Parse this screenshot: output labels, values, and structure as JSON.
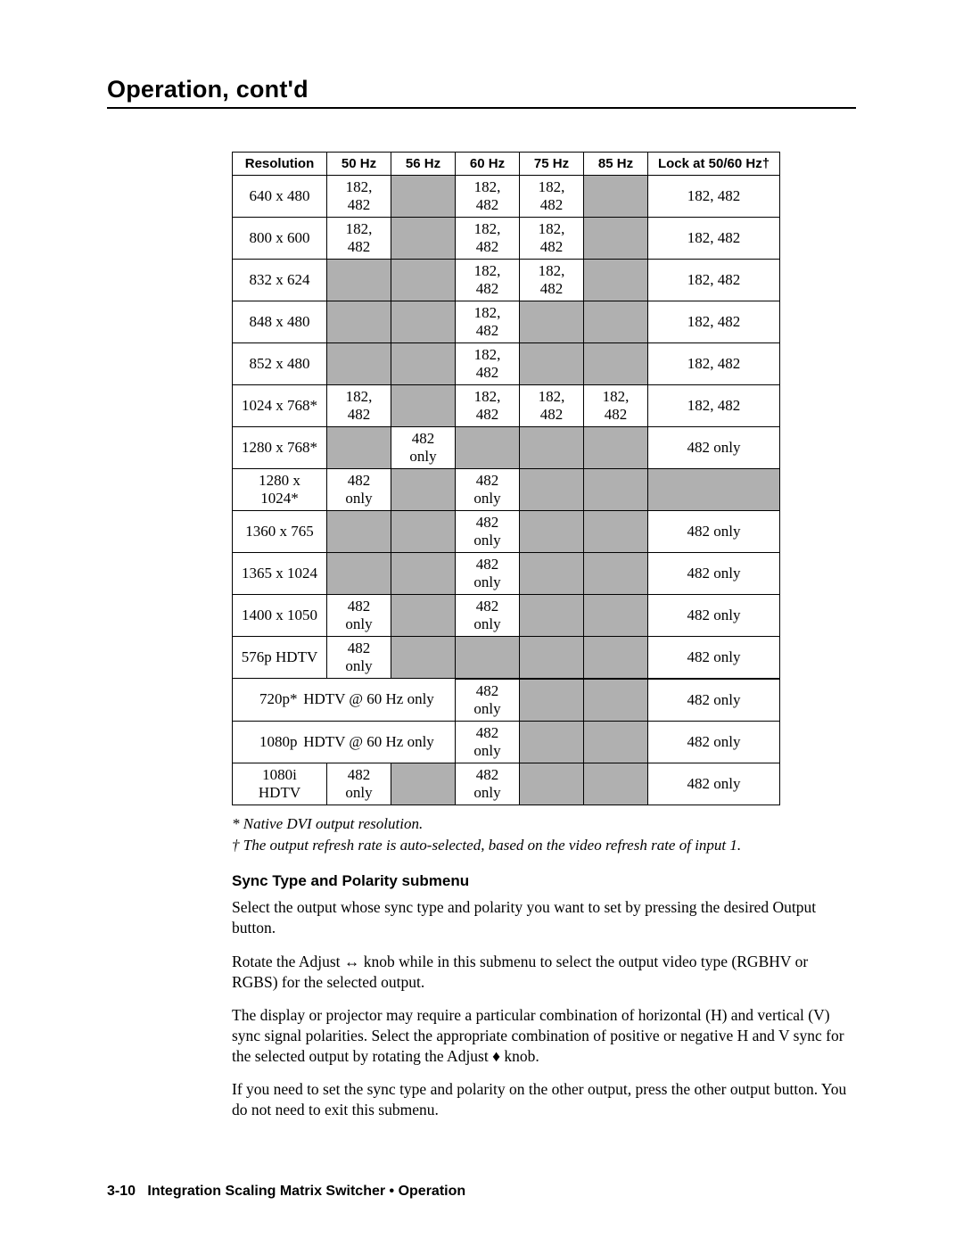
{
  "page_title": "Operation, cont'd",
  "table": {
    "headers": [
      "Resolution",
      "50 Hz",
      "56 Hz",
      "60 Hz",
      "75 Hz",
      "85 Hz",
      "Lock at 50/60 Hz†"
    ],
    "rows": [
      {
        "res": "640 x 480",
        "cells": [
          "182, 482",
          "",
          "182, 482",
          "182, 482",
          "",
          "182, 482"
        ],
        "shaded": [
          false,
          true,
          false,
          false,
          true,
          false
        ]
      },
      {
        "res": "800 x 600",
        "cells": [
          "182, 482",
          "",
          "182, 482",
          "182, 482",
          "",
          "182, 482"
        ],
        "shaded": [
          false,
          true,
          false,
          false,
          true,
          false
        ]
      },
      {
        "res": "832 x 624",
        "cells": [
          "",
          "",
          "182, 482",
          "182, 482",
          "",
          "182, 482"
        ],
        "shaded": [
          true,
          true,
          false,
          false,
          true,
          false
        ]
      },
      {
        "res": "848 x 480",
        "cells": [
          "",
          "",
          "182, 482",
          "",
          "",
          "182, 482"
        ],
        "shaded": [
          true,
          true,
          false,
          true,
          true,
          false
        ]
      },
      {
        "res": "852 x 480",
        "cells": [
          "",
          "",
          "182, 482",
          "",
          "",
          "182, 482"
        ],
        "shaded": [
          true,
          true,
          false,
          true,
          true,
          false
        ]
      },
      {
        "res": "1024 x 768*",
        "cells": [
          "182, 482",
          "",
          "182, 482",
          "182, 482",
          "182, 482",
          "182, 482"
        ],
        "shaded": [
          false,
          true,
          false,
          false,
          false,
          false
        ]
      },
      {
        "res": "1280 x 768*",
        "cells": [
          "",
          "482 only",
          "",
          "",
          "",
          "482 only"
        ],
        "shaded": [
          true,
          false,
          true,
          true,
          true,
          false
        ]
      },
      {
        "res": "1280 x 1024*",
        "cells": [
          "482 only",
          "",
          "482 only",
          "",
          "",
          ""
        ],
        "shaded": [
          false,
          true,
          false,
          true,
          true,
          true
        ]
      },
      {
        "res": "1360 x 765",
        "cells": [
          "",
          "",
          "482 only",
          "",
          "",
          "482 only"
        ],
        "shaded": [
          true,
          true,
          false,
          true,
          true,
          false
        ]
      },
      {
        "res": "1365 x 1024",
        "cells": [
          "",
          "",
          "482 only",
          "",
          "",
          "482 only"
        ],
        "shaded": [
          true,
          true,
          false,
          true,
          true,
          false
        ]
      },
      {
        "res": "1400 x 1050",
        "cells": [
          "482 only",
          "",
          "482 only",
          "",
          "",
          "482 only"
        ],
        "shaded": [
          false,
          true,
          false,
          true,
          true,
          false
        ]
      },
      {
        "res": "576p HDTV",
        "cells": [
          "482 only",
          "",
          "",
          "",
          "",
          "482 only"
        ],
        "shaded": [
          false,
          true,
          true,
          true,
          true,
          false
        ]
      }
    ],
    "span_rows": [
      {
        "label": "720p*",
        "sub": "HDTV @ 60 Hz only",
        "cells": [
          "482 only",
          "",
          "",
          "482 only"
        ],
        "shaded": [
          false,
          true,
          true,
          false
        ],
        "top_border": true
      },
      {
        "label": "1080p",
        "sub": "HDTV @ 60 Hz only",
        "cells": [
          "482 only",
          "",
          "",
          "482 only"
        ],
        "shaded": [
          false,
          true,
          true,
          false
        ],
        "top_border": false
      }
    ],
    "last_row": {
      "res": "1080i HDTV",
      "cells": [
        "482 only",
        "",
        "482 only",
        "",
        "",
        "482 only"
      ],
      "shaded": [
        false,
        true,
        false,
        true,
        true,
        false
      ]
    }
  },
  "footnotes": {
    "note1": "* Native DVI output resolution.",
    "note2_prefix": "†",
    "note2": " The output refresh rate is auto-selected, based on the video refresh rate of input 1."
  },
  "section": {
    "heading": "Sync Type and Polarity submenu",
    "p1": "Select the output whose sync type and polarity you want to set by pressing the desired Output button.",
    "p2a": "Rotate the Adjust ",
    "p2_knob_h": "↔",
    "p2b": " knob while in this submenu to select the output video type (RGBHV or RGBS) for the selected output.",
    "p3a": "The display or projector may require a particular combination of horizontal (H) and vertical (V) sync signal polarities.  Select the appropriate combination of positive or negative H and V sync for the selected output by rotating the Adjust ",
    "p3_knob_v": "♦",
    "p3b": " knob.",
    "p4": "If you need to set the sync type and polarity on the other output, press the other output button.  You do not need to exit this submenu."
  },
  "footer": {
    "page_num": "3-10",
    "text": "Integration Scaling Matrix Switcher • Operation"
  }
}
